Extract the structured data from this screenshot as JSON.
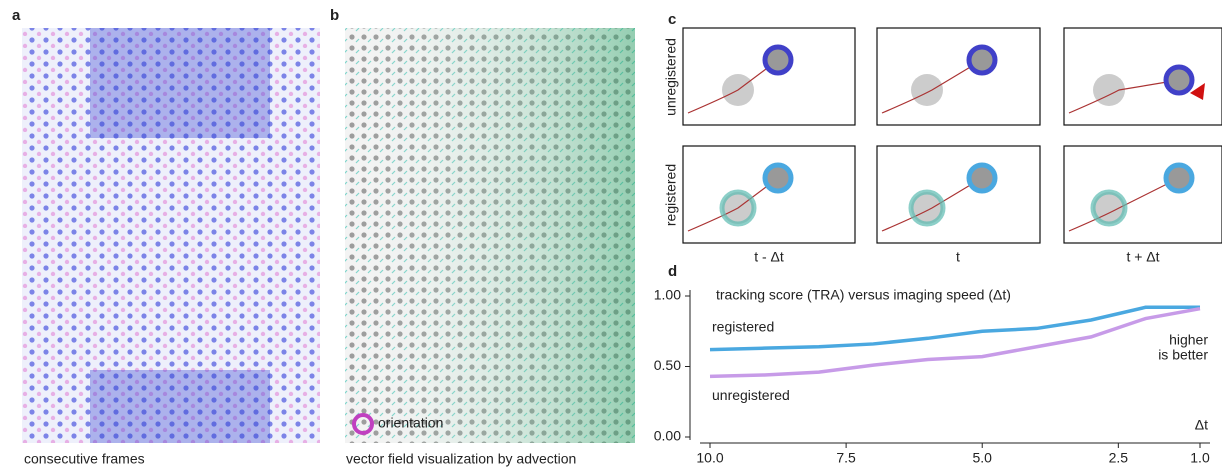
{
  "panels": {
    "a": {
      "label": "a",
      "caption": "consecutive frames"
    },
    "b": {
      "label": "b",
      "caption": "vector field visualization by advection",
      "legend": "orientation"
    },
    "c": {
      "label": "c",
      "rows": [
        "unregistered",
        "registered"
      ],
      "columns": [
        "t - Δt",
        "t",
        "t + Δt"
      ]
    },
    "d": {
      "label": "d"
    }
  },
  "chart_data": {
    "type": "line",
    "title": "tracking score (TRA) versus imaging speed (Δt)",
    "x_label": "Δt",
    "annotation": [
      "higher",
      "is better"
    ],
    "x": [
      10,
      9,
      8,
      7,
      6,
      5,
      4,
      3,
      2,
      1
    ],
    "series": [
      {
        "name": "registered",
        "color": "#4aa8e0",
        "values": [
          0.62,
          0.63,
          0.64,
          0.66,
          0.7,
          0.75,
          0.77,
          0.83,
          0.92,
          0.92
        ]
      },
      {
        "name": "unregistered",
        "color": "#c79be8",
        "values": [
          0.43,
          0.44,
          0.46,
          0.51,
          0.55,
          0.57,
          0.64,
          0.71,
          0.84,
          0.91
        ]
      }
    ],
    "xlim": [
      10,
      1
    ],
    "xticks": [
      {
        "value": 10,
        "label": "10.0"
      },
      {
        "value": 7.5,
        "label": "7.5"
      },
      {
        "value": 5,
        "label": "5.0"
      },
      {
        "value": 2.5,
        "label": "2.5"
      },
      {
        "value": 1,
        "label": "1.0"
      }
    ],
    "ylim": [
      0,
      1
    ],
    "yticks": [
      {
        "value": 0,
        "label": "0.00"
      },
      {
        "value": 0.5,
        "label": "0.50"
      },
      {
        "value": 1,
        "label": "1.00"
      }
    ]
  }
}
